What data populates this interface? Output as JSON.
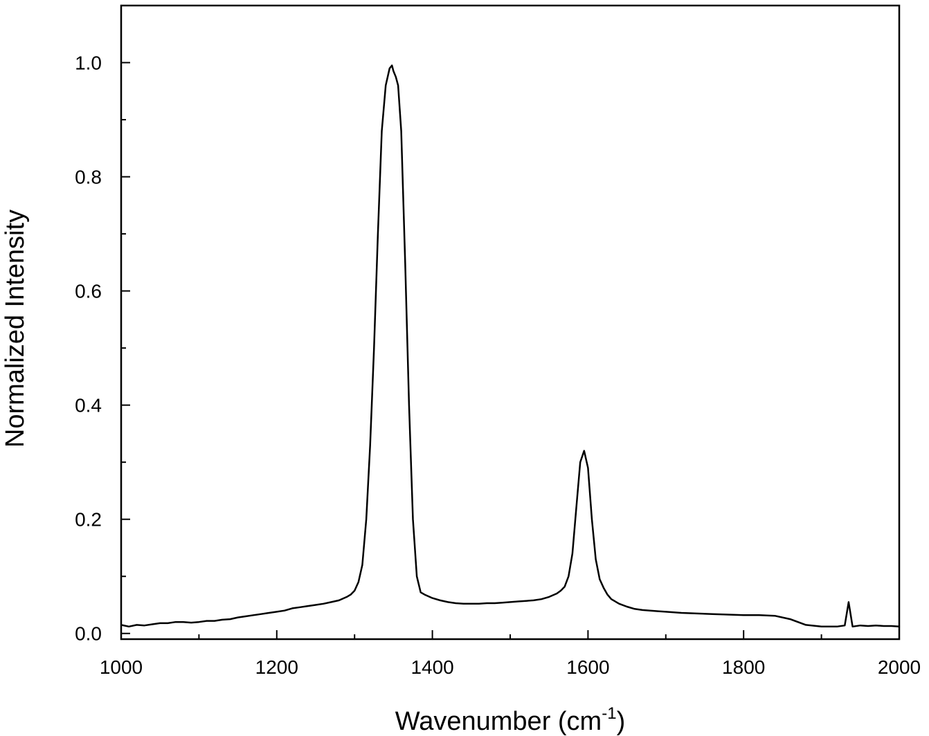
{
  "chart_data": {
    "type": "line",
    "title": "",
    "xlabel": "Wavenumber (cm",
    "xlabel_superscript": "-1",
    "xlabel_suffix": ")",
    "ylabel": "Normalized Intensity",
    "xlim": [
      1000,
      2000
    ],
    "ylim": [
      -0.01,
      1.1
    ],
    "grid": false,
    "legend": "none",
    "x_ticks": [
      1000,
      1200,
      1400,
      1600,
      1800,
      2000
    ],
    "x_tick_labels": [
      "1000",
      "1200",
      "1400",
      "1600",
      "1800",
      "2000"
    ],
    "y_ticks": [
      0.0,
      0.2,
      0.4,
      0.6,
      0.8,
      1.0
    ],
    "y_tick_labels": [
      "0.0",
      "0.2",
      "0.4",
      "0.6",
      "0.8",
      "1.0"
    ],
    "line_color": "#000000",
    "series": [
      {
        "x": [
          1000,
          1010,
          1020,
          1030,
          1040,
          1050,
          1060,
          1070,
          1080,
          1090,
          1100,
          1110,
          1120,
          1130,
          1140,
          1150,
          1160,
          1170,
          1180,
          1190,
          1200,
          1210,
          1220,
          1230,
          1240,
          1250,
          1260,
          1270,
          1280,
          1290,
          1295,
          1300,
          1305,
          1310,
          1315,
          1320,
          1325,
          1330,
          1335,
          1340,
          1345,
          1348,
          1350,
          1353,
          1356,
          1360,
          1365,
          1370,
          1375,
          1380,
          1385,
          1390,
          1395,
          1400,
          1410,
          1420,
          1430,
          1440,
          1450,
          1460,
          1470,
          1480,
          1490,
          1500,
          1510,
          1520,
          1530,
          1540,
          1550,
          1560,
          1565,
          1570,
          1575,
          1580,
          1585,
          1590,
          1595,
          1600,
          1605,
          1610,
          1615,
          1620,
          1625,
          1630,
          1640,
          1650,
          1660,
          1670,
          1680,
          1690,
          1700,
          1720,
          1740,
          1760,
          1780,
          1800,
          1820,
          1840,
          1860,
          1880,
          1900,
          1920,
          1930,
          1935,
          1940,
          1950,
          1960,
          1970,
          1980,
          1990,
          2000
        ],
        "y": [
          0.015,
          0.012,
          0.015,
          0.014,
          0.016,
          0.018,
          0.018,
          0.02,
          0.02,
          0.019,
          0.02,
          0.022,
          0.022,
          0.024,
          0.025,
          0.028,
          0.03,
          0.032,
          0.034,
          0.036,
          0.038,
          0.04,
          0.044,
          0.046,
          0.048,
          0.05,
          0.052,
          0.055,
          0.058,
          0.064,
          0.068,
          0.075,
          0.09,
          0.12,
          0.2,
          0.33,
          0.5,
          0.7,
          0.88,
          0.96,
          0.99,
          0.995,
          0.985,
          0.975,
          0.96,
          0.88,
          0.65,
          0.4,
          0.2,
          0.1,
          0.072,
          0.068,
          0.065,
          0.062,
          0.058,
          0.055,
          0.053,
          0.052,
          0.052,
          0.052,
          0.053,
          0.053,
          0.054,
          0.055,
          0.056,
          0.057,
          0.058,
          0.06,
          0.064,
          0.07,
          0.075,
          0.082,
          0.1,
          0.14,
          0.22,
          0.3,
          0.32,
          0.29,
          0.2,
          0.13,
          0.095,
          0.08,
          0.068,
          0.06,
          0.052,
          0.047,
          0.043,
          0.041,
          0.04,
          0.039,
          0.038,
          0.036,
          0.035,
          0.034,
          0.033,
          0.032,
          0.032,
          0.031,
          0.025,
          0.015,
          0.012,
          0.012,
          0.014,
          0.055,
          0.012,
          0.014,
          0.013,
          0.014,
          0.013,
          0.013,
          0.012
        ]
      }
    ]
  }
}
